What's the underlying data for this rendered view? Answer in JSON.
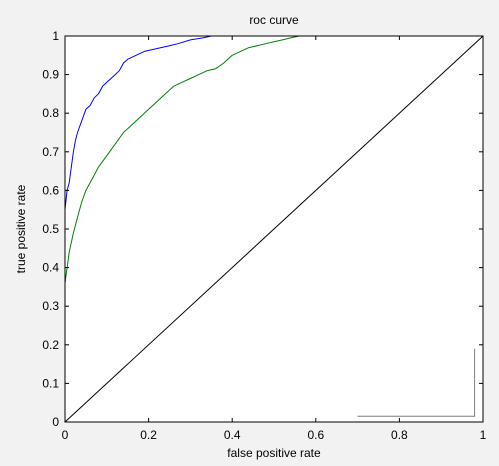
{
  "chart_data": {
    "type": "line",
    "title": "roc curve",
    "xlabel": "false positive rate",
    "ylabel": "true positive rate",
    "xlim": [
      0,
      1
    ],
    "ylim": [
      0,
      1
    ],
    "xticks": [
      0,
      0.2,
      0.4,
      0.6,
      0.8,
      1
    ],
    "xtick_labels": [
      "0",
      "0.2",
      "0.4",
      "0.6",
      "0.8",
      "1"
    ],
    "yticks": [
      0,
      0.1,
      0.2,
      0.3,
      0.4,
      0.5,
      0.6,
      0.7,
      0.8,
      0.9,
      1
    ],
    "ytick_labels": [
      "0",
      "0.1",
      "0.2",
      "0.3",
      "0.4",
      "0.5",
      "0.6",
      "0.7",
      "0.8",
      "0.9",
      "1"
    ],
    "grid": false,
    "legend": "none",
    "series": [
      {
        "color": "#0000ff",
        "x": [
          0,
          0,
          0.005,
          0.01,
          0.015,
          0.02,
          0.025,
          0.03,
          0.04,
          0.05,
          0.06,
          0.07,
          0.08,
          0.09,
          0.1,
          0.11,
          0.12,
          0.13,
          0.14,
          0.15,
          0.17,
          0.19,
          0.21,
          0.23,
          0.25,
          0.27,
          0.3,
          0.33,
          0.35,
          0.38,
          0.4,
          0.42
        ],
        "y": [
          0.49,
          0.55,
          0.6,
          0.62,
          0.66,
          0.7,
          0.73,
          0.75,
          0.78,
          0.81,
          0.82,
          0.84,
          0.85,
          0.87,
          0.88,
          0.89,
          0.9,
          0.91,
          0.93,
          0.94,
          0.95,
          0.96,
          0.965,
          0.97,
          0.975,
          0.98,
          0.99,
          0.995,
          1.0,
          1.0,
          1.0,
          1.0
        ]
      },
      {
        "color": "#008000",
        "x": [
          0,
          0.005,
          0.01,
          0.02,
          0.03,
          0.04,
          0.05,
          0.06,
          0.07,
          0.08,
          0.1,
          0.12,
          0.14,
          0.16,
          0.18,
          0.2,
          0.22,
          0.24,
          0.26,
          0.28,
          0.3,
          0.32,
          0.34,
          0.36,
          0.38,
          0.4,
          0.42,
          0.44,
          0.46,
          0.48,
          0.5,
          0.52,
          0.54,
          0.56,
          0.57
        ],
        "y": [
          0.36,
          0.4,
          0.44,
          0.49,
          0.53,
          0.57,
          0.6,
          0.62,
          0.64,
          0.66,
          0.69,
          0.72,
          0.75,
          0.77,
          0.79,
          0.81,
          0.83,
          0.85,
          0.87,
          0.88,
          0.89,
          0.9,
          0.91,
          0.915,
          0.93,
          0.95,
          0.96,
          0.97,
          0.975,
          0.98,
          0.985,
          0.99,
          0.995,
          1.0,
          1.0
        ]
      },
      {
        "color": "#000000",
        "x": [
          0,
          1
        ],
        "y": [
          0,
          1
        ]
      }
    ],
    "annotations": [
      {
        "type": "line",
        "color": "#7f7f7f",
        "x": [
          0.7,
          0.98,
          0.98
        ],
        "y": [
          0.015,
          0.015,
          0.19
        ]
      }
    ]
  }
}
